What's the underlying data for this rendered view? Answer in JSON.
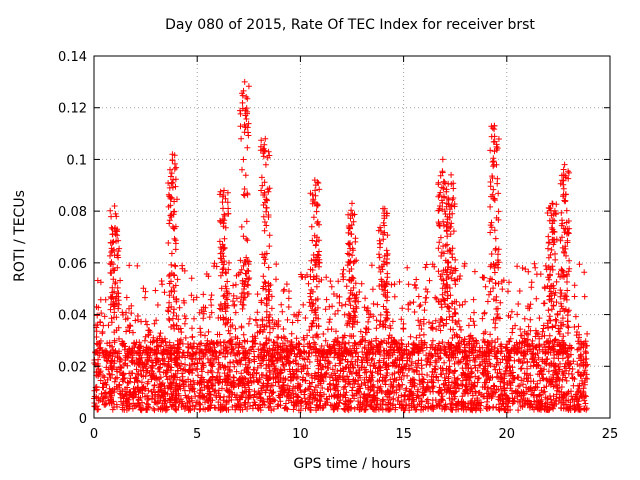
{
  "chart_data": {
    "type": "scatter",
    "title": "Day 080 of 2015, Rate Of TEC Index for receiver brst",
    "xlabel": "GPS time / hours",
    "ylabel": "ROTI / TECUs",
    "xlim": [
      0,
      25
    ],
    "ylim": [
      0,
      0.14
    ],
    "xticks": [
      "0",
      "5",
      "10",
      "15",
      "20",
      "25"
    ],
    "yticks": [
      "0",
      "0.02",
      "0.04",
      "0.06",
      "0.08",
      "0.1",
      "0.12",
      "0.14"
    ],
    "grid": true,
    "marker": "plus",
    "color": "#ff0000",
    "x_extent": [
      0,
      23.9
    ],
    "baseline_band": [
      0.003,
      0.03
    ],
    "bursts": [
      {
        "x": 1.0,
        "y": 0.082
      },
      {
        "x": 3.8,
        "y": 0.102
      },
      {
        "x": 6.3,
        "y": 0.088
      },
      {
        "x": 7.3,
        "y": 0.13
      },
      {
        "x": 8.3,
        "y": 0.108
      },
      {
        "x": 10.7,
        "y": 0.092
      },
      {
        "x": 12.5,
        "y": 0.083
      },
      {
        "x": 14.0,
        "y": 0.081
      },
      {
        "x": 16.9,
        "y": 0.1
      },
      {
        "x": 17.3,
        "y": 0.094
      },
      {
        "x": 19.4,
        "y": 0.113
      },
      {
        "x": 22.2,
        "y": 0.083
      },
      {
        "x": 22.8,
        "y": 0.098
      }
    ]
  }
}
